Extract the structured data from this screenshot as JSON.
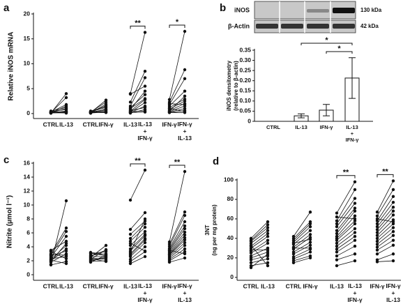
{
  "chart_data": [
    {
      "type": "paired",
      "panel_label": "a",
      "ylabel": "Relative iNOS mRNA",
      "color": "#111111",
      "ylim": [
        -1,
        20
      ],
      "yticks": [
        0,
        5,
        10,
        15,
        20
      ],
      "groups": [
        {
          "categories": [
            "CTRL",
            "IL-13"
          ],
          "values": [
            [
              0.1,
              4.0
            ],
            [
              0.2,
              3.2
            ],
            [
              0.3,
              1.8
            ],
            [
              0.1,
              1.5
            ],
            [
              0.2,
              1.0
            ],
            [
              0.4,
              0.8
            ],
            [
              0.1,
              0.5
            ],
            [
              0.3,
              0.4
            ],
            [
              0.2,
              0.3
            ],
            [
              0.1,
              0.2
            ],
            [
              0.5,
              1.2
            ],
            [
              0.2,
              0.1
            ]
          ]
        },
        {
          "categories": [
            "CTRL",
            "IFN-γ"
          ],
          "values": [
            [
              0.2,
              2.7
            ],
            [
              0.3,
              2.3
            ],
            [
              0.1,
              1.9
            ],
            [
              0.2,
              1.6
            ],
            [
              0.4,
              1.2
            ],
            [
              0.1,
              0.9
            ],
            [
              0.3,
              0.6
            ],
            [
              0.2,
              0.4
            ],
            [
              0.1,
              0.3
            ],
            [
              0.5,
              1.4
            ],
            [
              0.2,
              0.2
            ],
            [
              0.3,
              0.8
            ]
          ]
        },
        {
          "categories": [
            "IL-13",
            "IL-13\n+\nIFN-γ"
          ],
          "significance": "**",
          "values": [
            [
              4.0,
              16.3
            ],
            [
              2.3,
              8.5
            ],
            [
              1.5,
              7.2
            ],
            [
              0.8,
              4.5
            ],
            [
              1.0,
              3.0
            ],
            [
              0.5,
              2.8
            ],
            [
              0.3,
              2.2
            ],
            [
              0.2,
              1.5
            ],
            [
              0.6,
              1.2
            ],
            [
              0.1,
              0.8
            ],
            [
              0.4,
              0.5
            ],
            [
              1.2,
              3.8
            ],
            [
              0.2,
              0.3
            ],
            [
              3.9,
              5.5
            ]
          ]
        },
        {
          "categories": [
            "IFN-γ",
            "IFN-γ\n+\nIL-13"
          ],
          "significance": "*",
          "values": [
            [
              2.8,
              16.5
            ],
            [
              2.3,
              8.8
            ],
            [
              1.8,
              7.0
            ],
            [
              1.5,
              4.5
            ],
            [
              1.2,
              2.9
            ],
            [
              0.9,
              2.5
            ],
            [
              0.6,
              2.0
            ],
            [
              0.4,
              1.5
            ],
            [
              0.3,
              1.0
            ],
            [
              0.2,
              0.6
            ],
            [
              1.0,
              0.4
            ],
            [
              0.5,
              3.5
            ],
            [
              0.2,
              0.2
            ],
            [
              2.0,
              1.8
            ]
          ]
        }
      ]
    },
    {
      "type": "bar",
      "panel_label": "b",
      "blot": {
        "bands": [
          "iNOS",
          "β-Actin"
        ],
        "sizes": [
          "130 kDa",
          "42 kDa"
        ]
      },
      "ylabel": "iNOS densitometry\n(relative to β-actin)",
      "color": "#ffffff",
      "categories": [
        "CTRL",
        "IL-13",
        "IFN-γ",
        "IL-13\n+\nIFN-γ"
      ],
      "values": [
        0,
        0.027,
        0.055,
        0.213
      ],
      "errors": [
        0,
        0.01,
        0.028,
        0.1
      ],
      "ylim": [
        0,
        0.35
      ],
      "yticks": [
        0,
        0.05,
        {
          "value": 0.1,
          "label": "0.10"
        },
        0.15,
        {
          "value": 0.2,
          "label": "0.20"
        },
        0.25,
        {
          "value": 0.3,
          "label": "0.30"
        },
        0.35
      ],
      "comparisons": [
        {
          "categories": [
            1,
            3
          ],
          "label": "*"
        },
        {
          "categories": [
            2,
            3
          ],
          "label": "*"
        }
      ]
    },
    {
      "type": "paired",
      "panel_label": "c",
      "ylabel": "Nitrite (µmol l⁻¹)",
      "color": "#111111",
      "ylim": [
        -0.8,
        16
      ],
      "yticks": [
        0,
        2,
        4,
        6,
        8,
        10,
        12,
        14,
        16
      ],
      "groups": [
        {
          "categories": [
            "CTRL",
            "IL-13"
          ],
          "values": [
            [
              1.5,
              10.6
            ],
            [
              3.0,
              6.7
            ],
            [
              2.8,
              6.2
            ],
            [
              2.5,
              5.5
            ],
            [
              3.5,
              4.8
            ],
            [
              2.2,
              4.2
            ],
            [
              2.0,
              3.7
            ],
            [
              2.7,
              3.4
            ],
            [
              1.8,
              3.0
            ],
            [
              2.3,
              2.6
            ],
            [
              3.3,
              2.3
            ],
            [
              1.4,
              1.9
            ],
            [
              2.1,
              1.6
            ],
            [
              2.9,
              2.8
            ],
            [
              1.9,
              4.5
            ]
          ]
        },
        {
          "categories": [
            "CTRL",
            "IFN-γ"
          ],
          "values": [
            [
              2.5,
              4.2
            ],
            [
              2.2,
              3.6
            ],
            [
              3.0,
              3.3
            ],
            [
              2.8,
              3.0
            ],
            [
              1.8,
              2.8
            ],
            [
              2.6,
              2.6
            ],
            [
              2.0,
              2.4
            ],
            [
              3.2,
              2.9
            ],
            [
              2.4,
              2.2
            ],
            [
              1.9,
              2.0
            ],
            [
              2.7,
              3.5
            ],
            [
              2.1,
              2.5
            ],
            [
              3.1,
              2.7
            ],
            [
              2.3,
              1.9
            ]
          ]
        },
        {
          "categories": [
            "IL-13",
            "IL-13\n+\nIFN-γ"
          ],
          "significance": "**",
          "values": [
            [
              10.7,
              15.0
            ],
            [
              6.5,
              8.9
            ],
            [
              5.8,
              7.7
            ],
            [
              5.2,
              7.3
            ],
            [
              4.8,
              6.8
            ],
            [
              4.2,
              6.2
            ],
            [
              3.7,
              5.8
            ],
            [
              3.4,
              5.6
            ],
            [
              3.0,
              5.2
            ],
            [
              2.6,
              4.6
            ],
            [
              2.2,
              4.0
            ],
            [
              1.9,
              3.3
            ],
            [
              1.6,
              2.6
            ],
            [
              4.5,
              3.4
            ],
            [
              2.8,
              5.0
            ],
            [
              3.2,
              8.0
            ]
          ]
        },
        {
          "categories": [
            "IFN-γ",
            "IFN-γ\n+\nIL-13"
          ],
          "significance": "**",
          "values": [
            [
              4.7,
              14.8
            ],
            [
              4.4,
              9.0
            ],
            [
              4.1,
              8.5
            ],
            [
              3.8,
              7.6
            ],
            [
              3.6,
              7.0
            ],
            [
              3.4,
              6.6
            ],
            [
              3.2,
              6.1
            ],
            [
              3.0,
              5.7
            ],
            [
              2.9,
              5.3
            ],
            [
              2.8,
              5.0
            ],
            [
              2.6,
              4.6
            ],
            [
              2.4,
              4.2
            ],
            [
              2.2,
              3.7
            ],
            [
              2.0,
              3.3
            ],
            [
              1.8,
              2.4
            ],
            [
              3.5,
              3.0
            ]
          ]
        }
      ]
    },
    {
      "type": "paired",
      "panel_label": "d",
      "ylabel": "3NT\n(ng per mg protein)",
      "color": "#111111",
      "ylim": [
        -3,
        100
      ],
      "yticks": [
        0,
        20,
        40,
        60,
        80,
        100
      ],
      "groups": [
        {
          "categories": [
            "CTRL",
            "IL-13"
          ],
          "values": [
            [
              40,
              57
            ],
            [
              38,
              54
            ],
            [
              37,
              51
            ],
            [
              35,
              48
            ],
            [
              32,
              45
            ],
            [
              30,
              42
            ],
            [
              27,
              38
            ],
            [
              25,
              35
            ],
            [
              22,
              30
            ],
            [
              20,
              26
            ],
            [
              18,
              22
            ],
            [
              15,
              19
            ],
            [
              12,
              15
            ],
            [
              10,
              24
            ],
            [
              28,
              28
            ],
            [
              33,
              12
            ]
          ]
        },
        {
          "categories": [
            "CTRL",
            "IFN-γ"
          ],
          "values": [
            [
              42,
              67
            ],
            [
              40,
              57
            ],
            [
              38,
              55
            ],
            [
              36,
              52
            ],
            [
              34,
              48
            ],
            [
              31,
              44
            ],
            [
              29,
              41
            ],
            [
              26,
              36
            ],
            [
              24,
              33
            ],
            [
              21,
              29
            ],
            [
              19,
              26
            ],
            [
              17,
              22
            ],
            [
              15,
              20
            ],
            [
              30,
              30
            ],
            [
              35,
              39
            ]
          ]
        },
        {
          "categories": [
            "IL-13",
            "IL-13\n+\nIFN-γ"
          ],
          "significance": "**",
          "values": [
            [
              66,
              98
            ],
            [
              58,
              90
            ],
            [
              55,
              81
            ],
            [
              52,
              76
            ],
            [
              48,
              71
            ],
            [
              45,
              68
            ],
            [
              42,
              63
            ],
            [
              40,
              58
            ],
            [
              38,
              55
            ],
            [
              35,
              50
            ],
            [
              32,
              46
            ],
            [
              29,
              42
            ],
            [
              26,
              38
            ],
            [
              22,
              32
            ],
            [
              18,
              24
            ],
            [
              12,
              17
            ],
            [
              62,
              60
            ]
          ]
        },
        {
          "categories": [
            "IFN-γ",
            "IFN-γ\n+\nIL-13"
          ],
          "significance": "**",
          "values": [
            [
              67,
              99
            ],
            [
              63,
              90
            ],
            [
              58,
              83
            ],
            [
              55,
              77
            ],
            [
              52,
              72
            ],
            [
              49,
              68
            ],
            [
              46,
              64
            ],
            [
              43,
              59
            ],
            [
              40,
              55
            ],
            [
              37,
              51
            ],
            [
              34,
              47
            ],
            [
              31,
              43
            ],
            [
              28,
              38
            ],
            [
              24,
              33
            ],
            [
              18,
              24
            ],
            [
              16,
              17
            ],
            [
              60,
              57
            ]
          ]
        }
      ]
    }
  ]
}
